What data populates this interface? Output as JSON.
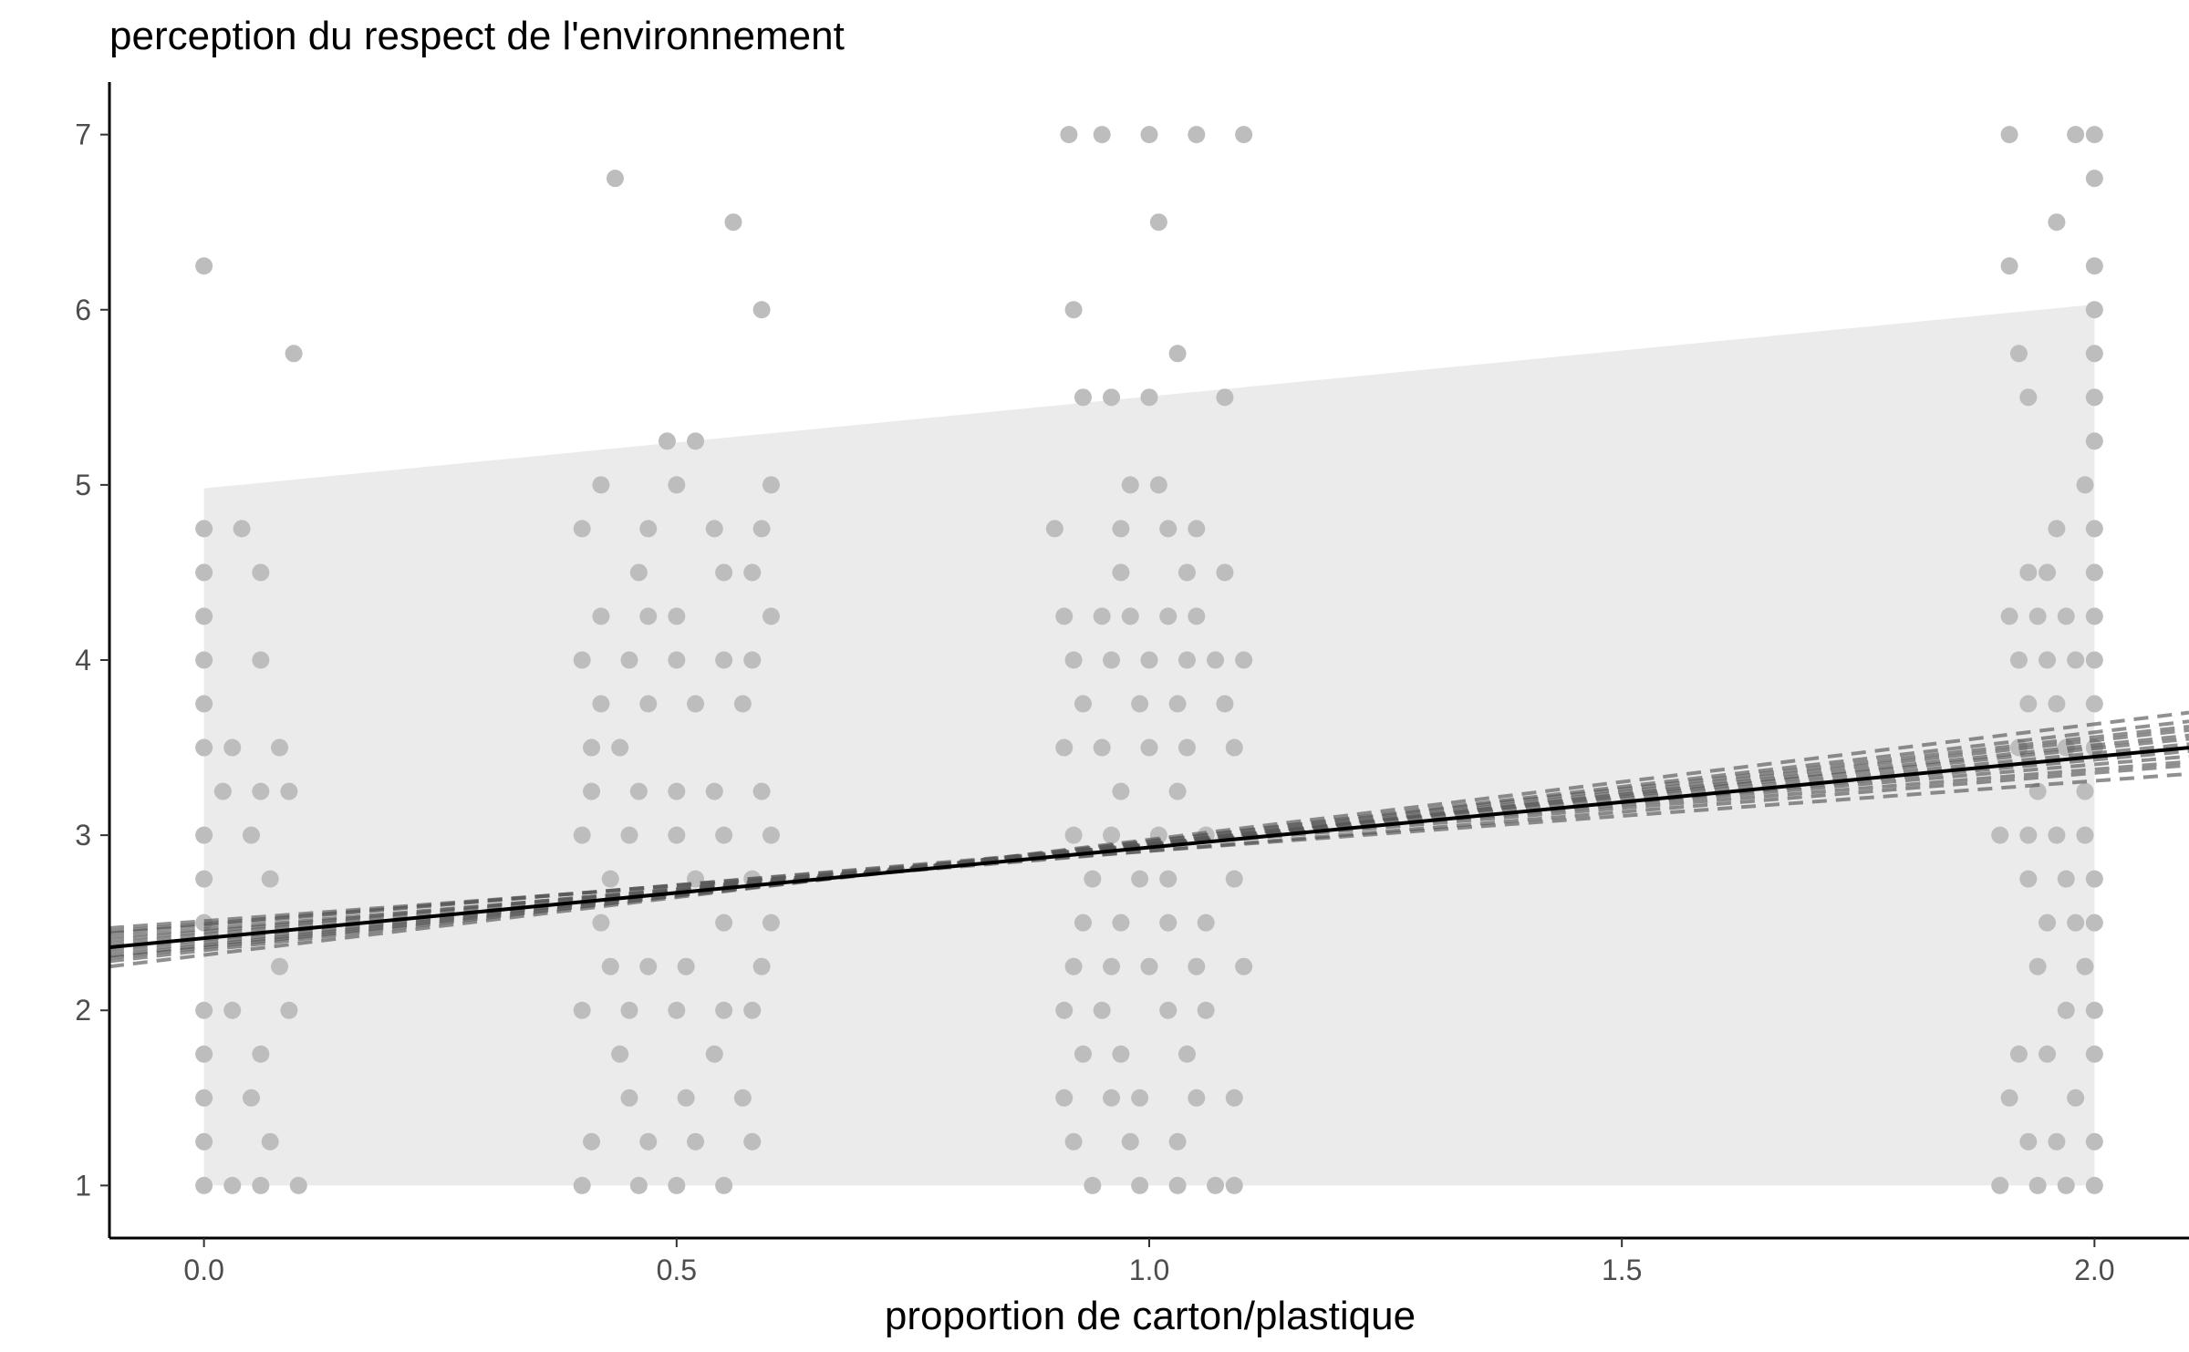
{
  "chart_data": {
    "type": "scatter",
    "title": "perception du respect de l'environnement",
    "xlabel": "proportion de carton/plastique",
    "ylabel": "",
    "xlim": [
      -0.1,
      2.1
    ],
    "ylim": [
      0.7,
      7.3
    ],
    "x_ticks": [
      0.0,
      0.5,
      1.0,
      1.5,
      2.0
    ],
    "x_tick_labels": [
      "0.0",
      "0.5",
      "1.0",
      "1.5",
      "2.0"
    ],
    "y_ticks": [
      1,
      2,
      3,
      4,
      5,
      6,
      7
    ],
    "y_tick_labels": [
      "1",
      "2",
      "3",
      "4",
      "5",
      "6",
      "7"
    ],
    "grid": false,
    "colors": {
      "points": "#bdbdbd",
      "prediction_band": "#ebebeb",
      "fit_line": "#000000",
      "bootstrap_lines": "#555555",
      "axis": "#000000"
    },
    "prediction_band": {
      "x": [
        0.0,
        2.0
      ],
      "lower": [
        1.0,
        1.0
      ],
      "upper": [
        4.98,
        6.03
      ]
    },
    "fit_line": {
      "x": [
        -0.1,
        2.1
      ],
      "y": [
        2.36,
        3.5
      ]
    },
    "bootstrap_lines": [
      {
        "y_start": 2.3,
        "y_end": 3.6
      },
      {
        "y_start": 2.45,
        "y_end": 3.42
      },
      {
        "y_start": 2.38,
        "y_end": 3.52
      },
      {
        "y_start": 2.28,
        "y_end": 3.65
      },
      {
        "y_start": 2.42,
        "y_end": 3.4
      },
      {
        "y_start": 2.33,
        "y_end": 3.57
      },
      {
        "y_start": 2.4,
        "y_end": 3.48
      },
      {
        "y_start": 2.25,
        "y_end": 3.7
      },
      {
        "y_start": 2.47,
        "y_end": 3.35
      },
      {
        "y_start": 2.35,
        "y_end": 3.55
      },
      {
        "y_start": 2.31,
        "y_end": 3.62
      },
      {
        "y_start": 2.44,
        "y_end": 3.45
      }
    ],
    "points": [
      {
        "x": 0.0,
        "y": 6.25
      },
      {
        "x": 0.095,
        "y": 5.75
      },
      {
        "x": 0.0,
        "y": 4.75
      },
      {
        "x": 0.04,
        "y": 4.75
      },
      {
        "x": 0.06,
        "y": 4.5
      },
      {
        "x": 0.0,
        "y": 4.5
      },
      {
        "x": 0.0,
        "y": 4.25
      },
      {
        "x": 0.06,
        "y": 4.0
      },
      {
        "x": 0.0,
        "y": 4.0
      },
      {
        "x": 0.0,
        "y": 3.75
      },
      {
        "x": 0.03,
        "y": 3.5
      },
      {
        "x": 0.08,
        "y": 3.5
      },
      {
        "x": 0.0,
        "y": 3.5
      },
      {
        "x": 0.02,
        "y": 3.25
      },
      {
        "x": 0.06,
        "y": 3.25
      },
      {
        "x": 0.09,
        "y": 3.25
      },
      {
        "x": 0.0,
        "y": 3.0
      },
      {
        "x": 0.05,
        "y": 3.0
      },
      {
        "x": 0.07,
        "y": 2.75
      },
      {
        "x": 0.0,
        "y": 2.75
      },
      {
        "x": 0.0,
        "y": 2.5
      },
      {
        "x": 0.08,
        "y": 2.25
      },
      {
        "x": 0.0,
        "y": 2.0
      },
      {
        "x": 0.03,
        "y": 2.0
      },
      {
        "x": 0.09,
        "y": 2.0
      },
      {
        "x": 0.0,
        "y": 1.75
      },
      {
        "x": 0.06,
        "y": 1.75
      },
      {
        "x": 0.0,
        "y": 1.5
      },
      {
        "x": 0.05,
        "y": 1.5
      },
      {
        "x": 0.0,
        "y": 1.25
      },
      {
        "x": 0.07,
        "y": 1.25
      },
      {
        "x": 0.0,
        "y": 1.0
      },
      {
        "x": 0.03,
        "y": 1.0
      },
      {
        "x": 0.06,
        "y": 1.0
      },
      {
        "x": 0.1,
        "y": 1.0
      },
      {
        "x": 0.435,
        "y": 6.75
      },
      {
        "x": 0.56,
        "y": 6.5
      },
      {
        "x": 0.59,
        "y": 6.0
      },
      {
        "x": 0.49,
        "y": 5.25
      },
      {
        "x": 0.52,
        "y": 5.25
      },
      {
        "x": 0.42,
        "y": 5.0
      },
      {
        "x": 0.5,
        "y": 5.0
      },
      {
        "x": 0.6,
        "y": 5.0
      },
      {
        "x": 0.4,
        "y": 4.75
      },
      {
        "x": 0.47,
        "y": 4.75
      },
      {
        "x": 0.54,
        "y": 4.75
      },
      {
        "x": 0.59,
        "y": 4.75
      },
      {
        "x": 0.46,
        "y": 4.5
      },
      {
        "x": 0.55,
        "y": 4.5
      },
      {
        "x": 0.58,
        "y": 4.5
      },
      {
        "x": 0.42,
        "y": 4.25
      },
      {
        "x": 0.47,
        "y": 4.25
      },
      {
        "x": 0.5,
        "y": 4.25
      },
      {
        "x": 0.6,
        "y": 4.25
      },
      {
        "x": 0.4,
        "y": 4.0
      },
      {
        "x": 0.45,
        "y": 4.0
      },
      {
        "x": 0.5,
        "y": 4.0
      },
      {
        "x": 0.55,
        "y": 4.0
      },
      {
        "x": 0.58,
        "y": 4.0
      },
      {
        "x": 0.42,
        "y": 3.75
      },
      {
        "x": 0.47,
        "y": 3.75
      },
      {
        "x": 0.52,
        "y": 3.75
      },
      {
        "x": 0.57,
        "y": 3.75
      },
      {
        "x": 0.41,
        "y": 3.5
      },
      {
        "x": 0.44,
        "y": 3.5
      },
      {
        "x": 0.41,
        "y": 3.25
      },
      {
        "x": 0.46,
        "y": 3.25
      },
      {
        "x": 0.5,
        "y": 3.25
      },
      {
        "x": 0.54,
        "y": 3.25
      },
      {
        "x": 0.59,
        "y": 3.25
      },
      {
        "x": 0.4,
        "y": 3.0
      },
      {
        "x": 0.45,
        "y": 3.0
      },
      {
        "x": 0.5,
        "y": 3.0
      },
      {
        "x": 0.55,
        "y": 3.0
      },
      {
        "x": 0.6,
        "y": 3.0
      },
      {
        "x": 0.43,
        "y": 2.75
      },
      {
        "x": 0.52,
        "y": 2.75
      },
      {
        "x": 0.58,
        "y": 2.75
      },
      {
        "x": 0.42,
        "y": 2.5
      },
      {
        "x": 0.55,
        "y": 2.5
      },
      {
        "x": 0.6,
        "y": 2.5
      },
      {
        "x": 0.43,
        "y": 2.25
      },
      {
        "x": 0.47,
        "y": 2.25
      },
      {
        "x": 0.51,
        "y": 2.25
      },
      {
        "x": 0.59,
        "y": 2.25
      },
      {
        "x": 0.4,
        "y": 2.0
      },
      {
        "x": 0.45,
        "y": 2.0
      },
      {
        "x": 0.5,
        "y": 2.0
      },
      {
        "x": 0.55,
        "y": 2.0
      },
      {
        "x": 0.58,
        "y": 2.0
      },
      {
        "x": 0.44,
        "y": 1.75
      },
      {
        "x": 0.54,
        "y": 1.75
      },
      {
        "x": 0.45,
        "y": 1.5
      },
      {
        "x": 0.51,
        "y": 1.5
      },
      {
        "x": 0.57,
        "y": 1.5
      },
      {
        "x": 0.41,
        "y": 1.25
      },
      {
        "x": 0.47,
        "y": 1.25
      },
      {
        "x": 0.52,
        "y": 1.25
      },
      {
        "x": 0.58,
        "y": 1.25
      },
      {
        "x": 0.4,
        "y": 1.0
      },
      {
        "x": 0.46,
        "y": 1.0
      },
      {
        "x": 0.5,
        "y": 1.0
      },
      {
        "x": 0.55,
        "y": 1.0
      },
      {
        "x": 0.915,
        "y": 7.0
      },
      {
        "x": 0.95,
        "y": 7.0
      },
      {
        "x": 1.0,
        "y": 7.0
      },
      {
        "x": 1.05,
        "y": 7.0
      },
      {
        "x": 1.1,
        "y": 7.0
      },
      {
        "x": 1.01,
        "y": 6.5
      },
      {
        "x": 0.92,
        "y": 6.0
      },
      {
        "x": 1.03,
        "y": 5.75
      },
      {
        "x": 0.93,
        "y": 5.5
      },
      {
        "x": 0.96,
        "y": 5.5
      },
      {
        "x": 1.0,
        "y": 5.5
      },
      {
        "x": 1.08,
        "y": 5.5
      },
      {
        "x": 0.98,
        "y": 5.0
      },
      {
        "x": 1.01,
        "y": 5.0
      },
      {
        "x": 0.9,
        "y": 4.75
      },
      {
        "x": 0.97,
        "y": 4.75
      },
      {
        "x": 1.02,
        "y": 4.75
      },
      {
        "x": 1.05,
        "y": 4.75
      },
      {
        "x": 0.97,
        "y": 4.5
      },
      {
        "x": 1.04,
        "y": 4.5
      },
      {
        "x": 1.08,
        "y": 4.5
      },
      {
        "x": 0.91,
        "y": 4.25
      },
      {
        "x": 0.95,
        "y": 4.25
      },
      {
        "x": 0.98,
        "y": 4.25
      },
      {
        "x": 1.02,
        "y": 4.25
      },
      {
        "x": 1.05,
        "y": 4.25
      },
      {
        "x": 0.92,
        "y": 4.0
      },
      {
        "x": 0.96,
        "y": 4.0
      },
      {
        "x": 1.0,
        "y": 4.0
      },
      {
        "x": 1.04,
        "y": 4.0
      },
      {
        "x": 1.07,
        "y": 4.0
      },
      {
        "x": 1.1,
        "y": 4.0
      },
      {
        "x": 0.93,
        "y": 3.75
      },
      {
        "x": 0.99,
        "y": 3.75
      },
      {
        "x": 1.03,
        "y": 3.75
      },
      {
        "x": 1.08,
        "y": 3.75
      },
      {
        "x": 0.91,
        "y": 3.5
      },
      {
        "x": 0.95,
        "y": 3.5
      },
      {
        "x": 1.0,
        "y": 3.5
      },
      {
        "x": 1.04,
        "y": 3.5
      },
      {
        "x": 1.09,
        "y": 3.5
      },
      {
        "x": 0.97,
        "y": 3.25
      },
      {
        "x": 1.03,
        "y": 3.25
      },
      {
        "x": 0.92,
        "y": 3.0
      },
      {
        "x": 0.96,
        "y": 3.0
      },
      {
        "x": 1.01,
        "y": 3.0
      },
      {
        "x": 1.06,
        "y": 3.0
      },
      {
        "x": 0.94,
        "y": 2.75
      },
      {
        "x": 0.99,
        "y": 2.75
      },
      {
        "x": 1.02,
        "y": 2.75
      },
      {
        "x": 1.09,
        "y": 2.75
      },
      {
        "x": 0.93,
        "y": 2.5
      },
      {
        "x": 0.97,
        "y": 2.5
      },
      {
        "x": 1.02,
        "y": 2.5
      },
      {
        "x": 1.06,
        "y": 2.5
      },
      {
        "x": 0.92,
        "y": 2.25
      },
      {
        "x": 0.96,
        "y": 2.25
      },
      {
        "x": 1.0,
        "y": 2.25
      },
      {
        "x": 1.05,
        "y": 2.25
      },
      {
        "x": 1.1,
        "y": 2.25
      },
      {
        "x": 0.91,
        "y": 2.0
      },
      {
        "x": 0.95,
        "y": 2.0
      },
      {
        "x": 1.02,
        "y": 2.0
      },
      {
        "x": 1.06,
        "y": 2.0
      },
      {
        "x": 0.93,
        "y": 1.75
      },
      {
        "x": 0.97,
        "y": 1.75
      },
      {
        "x": 1.04,
        "y": 1.75
      },
      {
        "x": 0.91,
        "y": 1.5
      },
      {
        "x": 0.96,
        "y": 1.5
      },
      {
        "x": 0.99,
        "y": 1.5
      },
      {
        "x": 1.05,
        "y": 1.5
      },
      {
        "x": 1.09,
        "y": 1.5
      },
      {
        "x": 0.92,
        "y": 1.25
      },
      {
        "x": 0.98,
        "y": 1.25
      },
      {
        "x": 1.03,
        "y": 1.25
      },
      {
        "x": 0.94,
        "y": 1.0
      },
      {
        "x": 0.99,
        "y": 1.0
      },
      {
        "x": 1.03,
        "y": 1.0
      },
      {
        "x": 1.07,
        "y": 1.0
      },
      {
        "x": 1.09,
        "y": 1.0
      },
      {
        "x": 1.91,
        "y": 7.0
      },
      {
        "x": 1.98,
        "y": 7.0
      },
      {
        "x": 2.0,
        "y": 7.0
      },
      {
        "x": 2.0,
        "y": 6.75
      },
      {
        "x": 1.96,
        "y": 6.5
      },
      {
        "x": 1.91,
        "y": 6.25
      },
      {
        "x": 2.0,
        "y": 6.25
      },
      {
        "x": 2.0,
        "y": 6.0
      },
      {
        "x": 1.92,
        "y": 5.75
      },
      {
        "x": 2.0,
        "y": 5.75
      },
      {
        "x": 1.93,
        "y": 5.5
      },
      {
        "x": 2.0,
        "y": 5.5
      },
      {
        "x": 2.0,
        "y": 5.25
      },
      {
        "x": 1.99,
        "y": 5.0
      },
      {
        "x": 1.96,
        "y": 4.75
      },
      {
        "x": 2.0,
        "y": 4.75
      },
      {
        "x": 1.93,
        "y": 4.5
      },
      {
        "x": 1.95,
        "y": 4.5
      },
      {
        "x": 2.0,
        "y": 4.5
      },
      {
        "x": 1.91,
        "y": 4.25
      },
      {
        "x": 1.94,
        "y": 4.25
      },
      {
        "x": 1.97,
        "y": 4.25
      },
      {
        "x": 2.0,
        "y": 4.25
      },
      {
        "x": 1.92,
        "y": 4.0
      },
      {
        "x": 1.95,
        "y": 4.0
      },
      {
        "x": 1.98,
        "y": 4.0
      },
      {
        "x": 2.0,
        "y": 4.0
      },
      {
        "x": 1.93,
        "y": 3.75
      },
      {
        "x": 1.96,
        "y": 3.75
      },
      {
        "x": 2.0,
        "y": 3.75
      },
      {
        "x": 1.92,
        "y": 3.5
      },
      {
        "x": 1.97,
        "y": 3.5
      },
      {
        "x": 2.0,
        "y": 3.5
      },
      {
        "x": 1.94,
        "y": 3.25
      },
      {
        "x": 1.99,
        "y": 3.25
      },
      {
        "x": 1.9,
        "y": 3.0
      },
      {
        "x": 1.93,
        "y": 3.0
      },
      {
        "x": 1.96,
        "y": 3.0
      },
      {
        "x": 1.99,
        "y": 3.0
      },
      {
        "x": 1.93,
        "y": 2.75
      },
      {
        "x": 1.97,
        "y": 2.75
      },
      {
        "x": 2.0,
        "y": 2.75
      },
      {
        "x": 1.95,
        "y": 2.5
      },
      {
        "x": 1.98,
        "y": 2.5
      },
      {
        "x": 2.0,
        "y": 2.5
      },
      {
        "x": 1.94,
        "y": 2.25
      },
      {
        "x": 1.99,
        "y": 2.25
      },
      {
        "x": 1.97,
        "y": 2.0
      },
      {
        "x": 2.0,
        "y": 2.0
      },
      {
        "x": 1.92,
        "y": 1.75
      },
      {
        "x": 1.95,
        "y": 1.75
      },
      {
        "x": 2.0,
        "y": 1.75
      },
      {
        "x": 1.91,
        "y": 1.5
      },
      {
        "x": 1.98,
        "y": 1.5
      },
      {
        "x": 1.93,
        "y": 1.25
      },
      {
        "x": 1.96,
        "y": 1.25
      },
      {
        "x": 2.0,
        "y": 1.25
      },
      {
        "x": 1.9,
        "y": 1.0
      },
      {
        "x": 1.94,
        "y": 1.0
      },
      {
        "x": 1.97,
        "y": 1.0
      },
      {
        "x": 2.0,
        "y": 1.0
      }
    ]
  }
}
